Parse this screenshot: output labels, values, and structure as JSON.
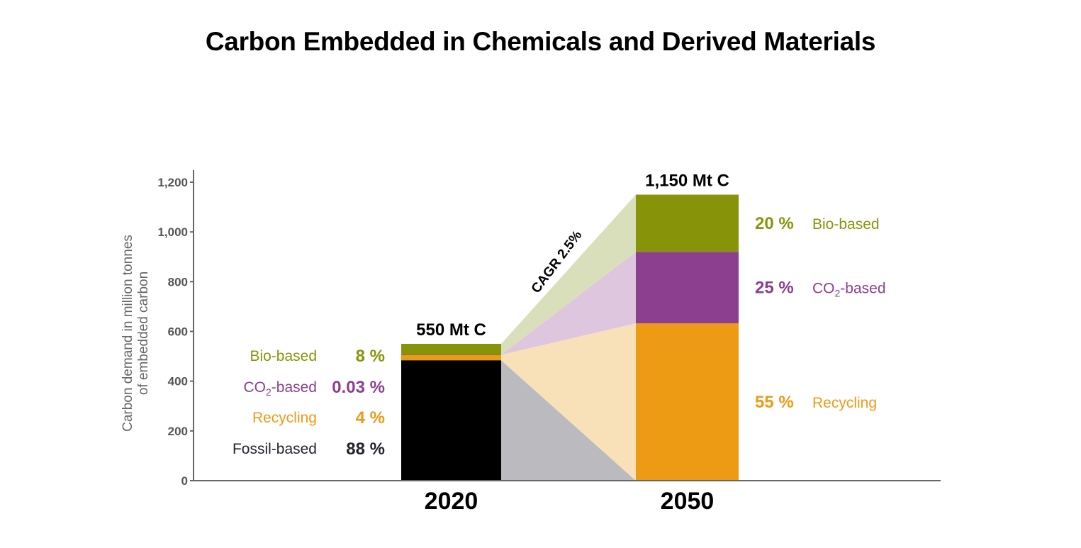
{
  "chart_data": {
    "type": "bar",
    "title": "Carbon Embedded in Chemicals and Derived Materials",
    "ylabel": [
      "Carbon demand in million tonnes",
      "of embedded carbon"
    ],
    "xlabel": "",
    "ylim": [
      0,
      1200
    ],
    "yticks": [
      0,
      200,
      400,
      600,
      800,
      1000,
      1200
    ],
    "ytick_labels": [
      "0",
      "200",
      "400",
      "600",
      "800",
      "1,000",
      "1,200"
    ],
    "categories": [
      "2020",
      "2050"
    ],
    "totals": [
      "550 Mt C",
      "1,150 Mt C"
    ],
    "stacked": true,
    "grid": false,
    "series": [
      {
        "name": "Fossil-based",
        "color": "#000000",
        "flow_color": "#bbbbbf",
        "values": [
          484,
          0
        ],
        "pct_labels": [
          "88 %",
          ""
        ]
      },
      {
        "name": "Recycling",
        "color": "#ed9a14",
        "flow_color": "#f8e0b8",
        "values": [
          22,
          632.5
        ],
        "pct_labels": [
          "4 %",
          "55 %"
        ]
      },
      {
        "name": "CO2-based",
        "color": "#8c3f8f",
        "flow_color": "#dfc6df",
        "values": [
          0.17,
          287.5
        ],
        "pct_labels": [
          "0.03 %",
          "25 %"
        ]
      },
      {
        "name": "Bio-based",
        "color": "#87940a",
        "flow_color": "#d9dfba",
        "values": [
          44,
          230
        ],
        "pct_labels": [
          "8 %",
          "20 %"
        ]
      }
    ],
    "label_colors": {
      "Fossil-based": "#23222e",
      "Recycling": "#ed9a14",
      "CO2-based": "#8c3f8f",
      "Bio-based": "#87940a"
    },
    "annotation": "CAGR 2.5%"
  }
}
